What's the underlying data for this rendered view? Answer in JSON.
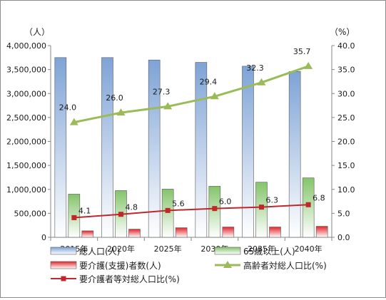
{
  "chart_data": {
    "type": "bar",
    "categories": [
      "2015年",
      "2020年",
      "2025年",
      "2030年",
      "2035年",
      "2040年"
    ],
    "y_left_label": "（人）",
    "y_right_label": "（%）",
    "y_left_range": [
      0,
      4000000
    ],
    "y_left_ticks": [
      "0",
      "500,000",
      "1,000,000",
      "1,500,000",
      "2,000,000",
      "2,500,000",
      "3,000,000",
      "3,500,000",
      "4,000,000"
    ],
    "y_right_range": [
      0,
      40
    ],
    "y_right_ticks": [
      "0.0",
      "5.0",
      "10.0",
      "15.0",
      "20.0",
      "25.0",
      "30.0",
      "35.0",
      "40.0"
    ],
    "grid": false,
    "legend_position": "bottom",
    "series": [
      {
        "name": "総人口(人)",
        "kind": "bar",
        "axis": "left",
        "color": "#7ea3d6",
        "values": [
          3750000,
          3750000,
          3700000,
          3650000,
          3570000,
          3460000
        ]
      },
      {
        "name": "65歳以上(人)",
        "kind": "bar",
        "axis": "left",
        "color": "#84c46a",
        "values": [
          900000,
          975000,
          1005000,
          1065000,
          1150000,
          1240000
        ]
      },
      {
        "name": "要介護(支援)者数(人)",
        "kind": "bar",
        "axis": "left",
        "color": "#e0262b",
        "values": [
          135000,
          170000,
          200000,
          215000,
          215000,
          230000
        ]
      },
      {
        "name": "高齢者対総人口比(%)",
        "kind": "line",
        "axis": "right",
        "color": "#9bbb59",
        "marker": "triangle",
        "values": [
          24.0,
          26.0,
          27.3,
          29.4,
          32.3,
          35.7
        ],
        "labels": [
          "24.0",
          "26.0",
          "27.3",
          "29.4",
          "32.3",
          "35.7"
        ]
      },
      {
        "name": "要介護者等対総人口比(%)",
        "kind": "line",
        "axis": "right",
        "color": "#c0272d",
        "marker": "square",
        "values": [
          4.1,
          4.8,
          5.6,
          6.0,
          6.3,
          6.8
        ],
        "labels": [
          "4.1",
          "4.8",
          "5.6",
          "6.0",
          "6.3",
          "6.8"
        ]
      }
    ]
  }
}
